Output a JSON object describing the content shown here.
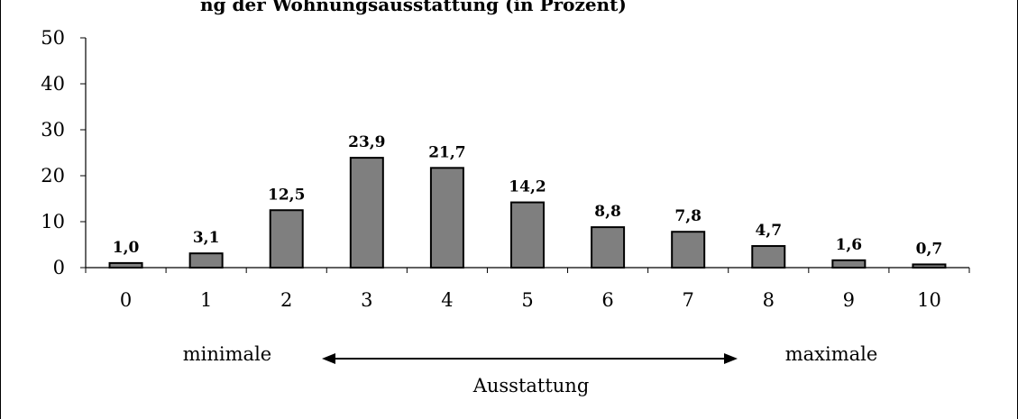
{
  "chart_data": {
    "type": "bar",
    "title": "ng der Wohnungsausstattung (in Prozent)",
    "categories": [
      "0",
      "1",
      "2",
      "3",
      "4",
      "5",
      "6",
      "7",
      "8",
      "9",
      "10"
    ],
    "values": [
      1.0,
      3.1,
      12.5,
      23.9,
      21.7,
      14.2,
      8.8,
      7.8,
      4.7,
      1.6,
      0.7
    ],
    "data_labels": [
      "1,0",
      "3,1",
      "12,5",
      "23,9",
      "21,7",
      "14,2",
      "8,8",
      "7,8",
      "4,7",
      "1,6",
      "0,7"
    ],
    "ylim": [
      0,
      50
    ],
    "yticks": [
      "0",
      "10",
      "20",
      "30",
      "40",
      "50"
    ],
    "grid": false,
    "bar_color": "#7f7f7f",
    "annotations": {
      "left": "minimale",
      "right": "maximale",
      "center": "Ausstattung"
    }
  }
}
